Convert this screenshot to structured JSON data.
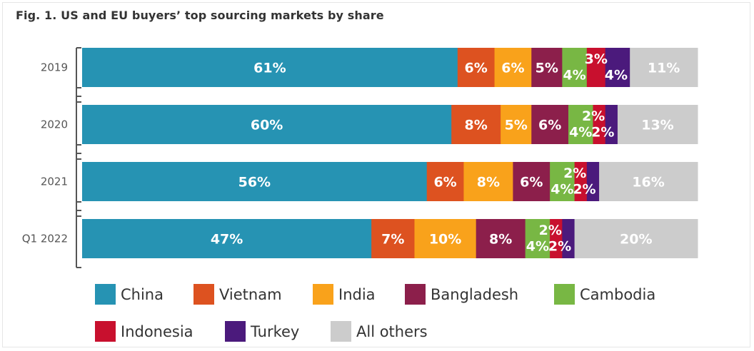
{
  "chart_data": {
    "type": "bar",
    "orientation": "horizontal",
    "stacked": true,
    "title": "Fig. 1. US and EU buyers’ top sourcing markets by share",
    "categories": [
      "2019",
      "2020",
      "2021",
      "Q1 2022"
    ],
    "xlim": [
      0,
      100
    ],
    "grid": false,
    "legend_position": "bottom",
    "series": [
      {
        "name": "China",
        "color": "#2693b3",
        "values": [
          61,
          60,
          56,
          47
        ],
        "labels": [
          "61%",
          "60%",
          "56%",
          "47%"
        ]
      },
      {
        "name": "Vietnam",
        "color": "#dd5220",
        "values": [
          6,
          8,
          6,
          7
        ],
        "labels": [
          "6%",
          "8%",
          "6%",
          "7%"
        ]
      },
      {
        "name": "India",
        "color": "#f9a21b",
        "values": [
          6,
          5,
          8,
          10
        ],
        "labels": [
          "6%",
          "5%",
          "8%",
          "10%"
        ]
      },
      {
        "name": "Bangladesh",
        "color": "#8c1f4b",
        "values": [
          5,
          6,
          6,
          8
        ],
        "labels": [
          "5%",
          "6%",
          "6%",
          "8%"
        ]
      },
      {
        "name": "Cambodia",
        "color": "#78b744",
        "values": [
          4,
          4,
          4,
          4
        ],
        "labels": [
          "4%",
          "4%",
          "4%",
          "4%"
        ]
      },
      {
        "name": "Indonesia",
        "color": "#c8102e",
        "values": [
          3,
          2,
          2,
          2
        ],
        "labels": [
          "3%",
          "2%",
          "2%",
          "2%"
        ]
      },
      {
        "name": "Turkey",
        "color": "#4b1a7c",
        "values": [
          4,
          2,
          2,
          2
        ],
        "labels": [
          "4%",
          "2%",
          "2%",
          "2%"
        ]
      },
      {
        "name": "All others",
        "color": "#cccccc",
        "values": [
          11,
          13,
          16,
          20
        ],
        "labels": [
          "11%",
          "13%",
          "16%",
          "20%"
        ]
      }
    ]
  }
}
